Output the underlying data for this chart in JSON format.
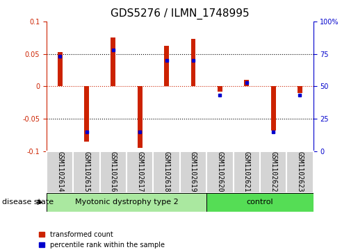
{
  "title": "GDS5276 / ILMN_1748995",
  "samples": [
    "GSM1102614",
    "GSM1102615",
    "GSM1102616",
    "GSM1102617",
    "GSM1102618",
    "GSM1102619",
    "GSM1102620",
    "GSM1102621",
    "GSM1102622",
    "GSM1102623"
  ],
  "red_values": [
    0.053,
    -0.085,
    0.075,
    -0.095,
    0.062,
    0.073,
    -0.008,
    0.01,
    -0.068,
    -0.01
  ],
  "blue_percentile": [
    73,
    15,
    78,
    15,
    70,
    70,
    43,
    53,
    15,
    43
  ],
  "group1_count": 6,
  "group2_count": 4,
  "group1_label": "Myotonic dystrophy type 2",
  "group2_label": "control",
  "disease_state_label": "disease state",
  "ylim": [
    -0.1,
    0.1
  ],
  "yticks_left": [
    -0.1,
    -0.05,
    0.0,
    0.05,
    0.1
  ],
  "yticks_right": [
    0,
    25,
    50,
    75,
    100
  ],
  "bar_color": "#cc2200",
  "dot_color": "#0000cc",
  "group1_bg": "#aae8a0",
  "group2_bg": "#55dd55",
  "tick_bg": "#d4d4d4",
  "title_fontsize": 11,
  "tick_fontsize": 7,
  "label_fontsize": 8,
  "bar_width": 0.18
}
